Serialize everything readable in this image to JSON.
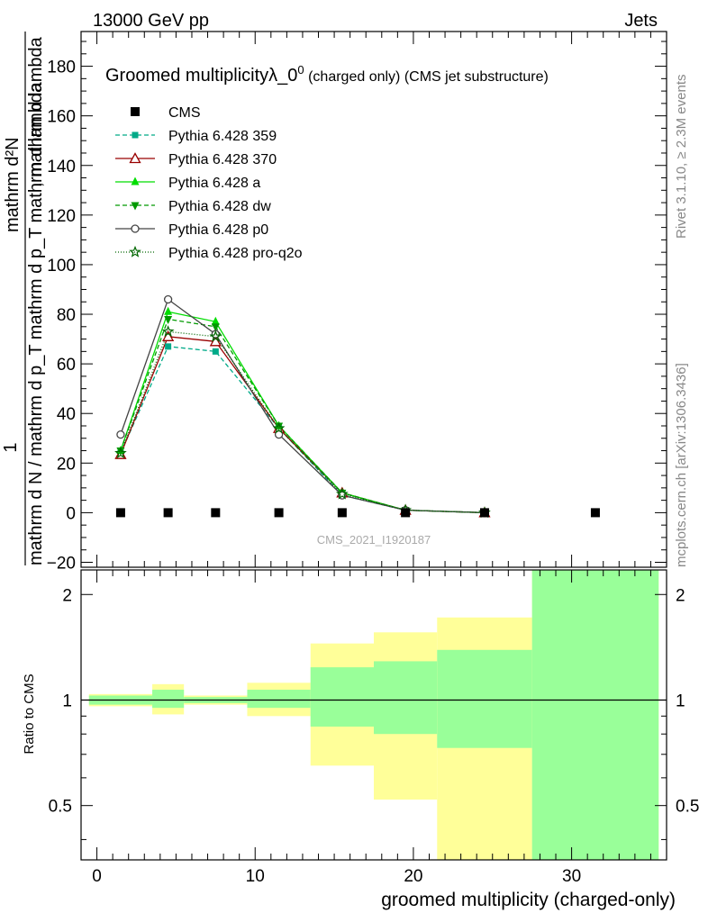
{
  "header": {
    "left": "13000 GeV pp",
    "right": "Jets"
  },
  "side_labels": {
    "rivet": "Rivet 3.1.10, ≥ 2.3M events",
    "mcplots": "mcplots.cern.ch [arXiv:1306.3436]"
  },
  "watermark": "CMS_2021_I1920187",
  "chart_data": {
    "type": "line",
    "title_main": "Groomed multiplicityλ_0",
    "title_sup": "0",
    "title_tail": " (charged only) (CMS jet substructure)",
    "ylabel_top": "1",
    "ylabel_bottom": "mathrm d N / mathrm d p_T mathrm d p_T mathrm d lambda",
    "ylabel_num": "mathrm d²N",
    "xlabel": "groomed multiplicity (charged-only)",
    "ratio_ylabel": "Ratio to CMS",
    "xlim": [
      -1,
      36
    ],
    "ylim": [
      -22,
      194
    ],
    "ratio_ylim": [
      0.35,
      2.35
    ],
    "ratio_scale": "log",
    "x_ticks": [
      "0",
      "10",
      "20",
      "30"
    ],
    "y_ticks": [
      "−20",
      "0",
      "20",
      "40",
      "60",
      "80",
      "100",
      "120",
      "140",
      "160",
      "180"
    ],
    "ratio_ticks": [
      "0.5",
      "1",
      "2"
    ],
    "legend_placement": "top-left",
    "cms": {
      "name": "CMS",
      "x": [
        1.5,
        4.5,
        7.5,
        11.5,
        15.5,
        19.5,
        24.5,
        31.5
      ],
      "y": [
        0,
        0,
        0,
        0,
        0,
        0,
        0,
        0
      ]
    },
    "series": [
      {
        "name": "Pythia 6.428 359",
        "color": "#00aa88",
        "dash": "5,3",
        "marker": "square",
        "x": [
          1.5,
          4.5,
          7.5,
          11.5,
          15.5,
          19.5,
          24.5
        ],
        "y": [
          24,
          67,
          65,
          34,
          7,
          1,
          0
        ]
      },
      {
        "name": "Pythia 6.428 370",
        "color": "#990000",
        "dash": "",
        "marker": "triangle-open",
        "x": [
          1.5,
          4.5,
          7.5,
          11.5,
          15.5,
          19.5,
          24.5
        ],
        "y": [
          23.5,
          71,
          69,
          34,
          8,
          1,
          0
        ]
      },
      {
        "name": "Pythia 6.428 a",
        "color": "#00dd00",
        "dash": "",
        "marker": "triangle",
        "x": [
          1.5,
          4.5,
          7.5,
          11.5,
          15.5,
          19.5,
          24.5
        ],
        "y": [
          25,
          81,
          77,
          35,
          8,
          1,
          0
        ]
      },
      {
        "name": "Pythia 6.428 dw",
        "color": "#009900",
        "dash": "5,3",
        "marker": "triangle-down",
        "x": [
          1.5,
          4.5,
          7.5,
          11.5,
          15.5,
          19.5,
          24.5
        ],
        "y": [
          25,
          78,
          75,
          35,
          8,
          1,
          0
        ]
      },
      {
        "name": "Pythia 6.428 p0",
        "color": "#444444",
        "dash": "",
        "marker": "circle-open",
        "x": [
          1.5,
          4.5,
          7.5,
          11.5,
          15.5,
          19.5,
          24.5
        ],
        "y": [
          31.5,
          86,
          72,
          31.5,
          7,
          1,
          0
        ]
      },
      {
        "name": "Pythia 6.428 pro-q2o",
        "color": "#006600",
        "dash": "1,2",
        "marker": "star",
        "x": [
          1.5,
          4.5,
          7.5,
          11.5,
          15.5,
          19.5,
          24.5
        ],
        "y": [
          24,
          73,
          71,
          34,
          7.5,
          1,
          0
        ]
      }
    ],
    "ratio_bands": {
      "bin_edges": [
        -0.5,
        3.5,
        5.5,
        9.5,
        13.5,
        17.5,
        21.5,
        27.5,
        35.5
      ],
      "yellow_low": [
        0.96,
        0.91,
        0.97,
        0.9,
        0.65,
        0.52,
        0.35,
        0.35
      ],
      "yellow_high": [
        1.04,
        1.11,
        1.03,
        1.12,
        1.45,
        1.56,
        1.72,
        2.35
      ],
      "green_low": [
        0.97,
        0.95,
        0.98,
        0.95,
        0.84,
        0.8,
        0.73,
        0.35
      ],
      "green_high": [
        1.03,
        1.07,
        1.02,
        1.07,
        1.24,
        1.29,
        1.39,
        2.35
      ],
      "yellow_color": "#ffff99",
      "green_color": "#99ff99"
    }
  }
}
